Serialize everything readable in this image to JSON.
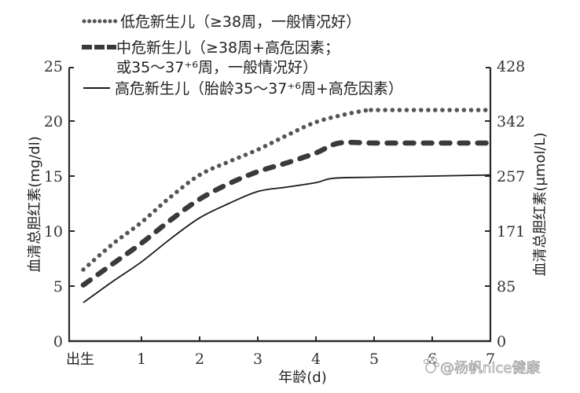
{
  "chart_data": {
    "type": "line",
    "title": "",
    "xlabel": "年龄(d)",
    "ylabel": "血清总胆红素(mg/dl)",
    "ylabel_right": "血清总胆红素(μmol/L)",
    "x_ticks": [
      "出生",
      "1",
      "2",
      "3",
      "4",
      "5",
      "6",
      "7"
    ],
    "x": [
      0,
      1,
      2,
      3,
      4,
      5,
      6,
      7
    ],
    "xlim": [
      0,
      7
    ],
    "ylim": [
      0,
      25
    ],
    "y_ticks_left": [
      "0",
      "5",
      "10",
      "15",
      "20",
      "25"
    ],
    "y_ticks_right": [
      "0",
      "85",
      "171",
      "257",
      "342",
      "428"
    ],
    "grid": false,
    "legend_position": "top-left, inside",
    "series": [
      {
        "name": "低危新生儿（≥38周，一般情况好）",
        "style": "dotted",
        "x": [
          0,
          0.5,
          1,
          1.5,
          2,
          2.5,
          3,
          3.5,
          4,
          4.5,
          4.9,
          5,
          6,
          7
        ],
        "values": [
          6.5,
          8.8,
          10.8,
          13.1,
          15.1,
          16.3,
          17.4,
          18.7,
          19.9,
          20.6,
          21.0,
          21.0,
          21.0,
          21.0
        ]
      },
      {
        "name": "中危新生儿（≥38周+高危因素；或35～37+6周，一般情况好）",
        "style": "dashed",
        "x": [
          0,
          0.5,
          1,
          1.5,
          2,
          2.5,
          3,
          3.5,
          4,
          4.4,
          5,
          6,
          7
        ],
        "values": [
          5.1,
          7.0,
          8.9,
          11.0,
          12.9,
          14.3,
          15.4,
          16.2,
          17.1,
          18.0,
          18.0,
          18.0,
          18.0
        ]
      },
      {
        "name": "高危新生儿（胎龄35～37+6周+高危因素）",
        "style": "solid",
        "x": [
          0,
          0.5,
          1,
          1.5,
          2,
          2.5,
          3,
          3.5,
          4,
          4.3,
          5,
          6,
          7
        ],
        "values": [
          3.5,
          5.4,
          7.2,
          9.3,
          11.2,
          12.5,
          13.6,
          14.0,
          14.4,
          14.8,
          14.9,
          15.0,
          15.1
        ]
      }
    ],
    "annotations": [
      "@杨帆nice健康"
    ]
  },
  "legend": {
    "items": [
      {
        "line1": "低危新生儿（≥38周，一般情况好）",
        "line2": ""
      },
      {
        "line1": "中危新生儿（≥38周+高危因素；",
        "line2": "或35～37⁺⁶周，一般情况好）"
      },
      {
        "line1": "高危新生儿（胎龄35～37⁺⁶周+高危因素）",
        "line2": ""
      }
    ]
  },
  "watermark": {
    "text": "@杨帆nice健康",
    "icon": "baidu-paw-icon"
  },
  "colors": {
    "line": "#1a1a1a",
    "dots": "#555555",
    "dashes": "#3a3a3a",
    "axis": "#2a2a2a"
  }
}
